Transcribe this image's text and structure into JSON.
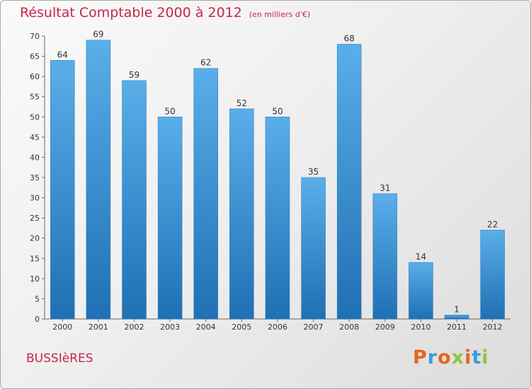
{
  "header": {
    "title": "Résultat Comptable 2000 à 2012",
    "unit": "(en milliers d'€)"
  },
  "footer": {
    "commune": "BUSSIèRES",
    "brand": "Proxiti"
  },
  "colors": {
    "title": "#c7264a",
    "bar_top": "#5aaee9",
    "bar_bottom": "#1f70b4",
    "brand_letters": [
      "#e8641b",
      "#3a9bd6",
      "#e8641b",
      "#8cc63f",
      "#e8641b",
      "#3a9bd6",
      "#8cc63f"
    ]
  },
  "chart_data": {
    "type": "bar",
    "title": "Résultat Comptable 2000 à 2012",
    "subtitle": "(en milliers d'€)",
    "xlabel": "",
    "ylabel": "",
    "categories": [
      "2000",
      "2001",
      "2002",
      "2003",
      "2004",
      "2005",
      "2006",
      "2007",
      "2008",
      "2009",
      "2010",
      "2011",
      "2012"
    ],
    "values": [
      64,
      69,
      59,
      50,
      62,
      52,
      50,
      35,
      68,
      31,
      14,
      1,
      22
    ],
    "ylim": [
      0,
      70
    ],
    "yticks": [
      0,
      5,
      10,
      15,
      20,
      25,
      30,
      35,
      40,
      45,
      50,
      55,
      60,
      65,
      70
    ],
    "grid": false,
    "legend": "none"
  }
}
